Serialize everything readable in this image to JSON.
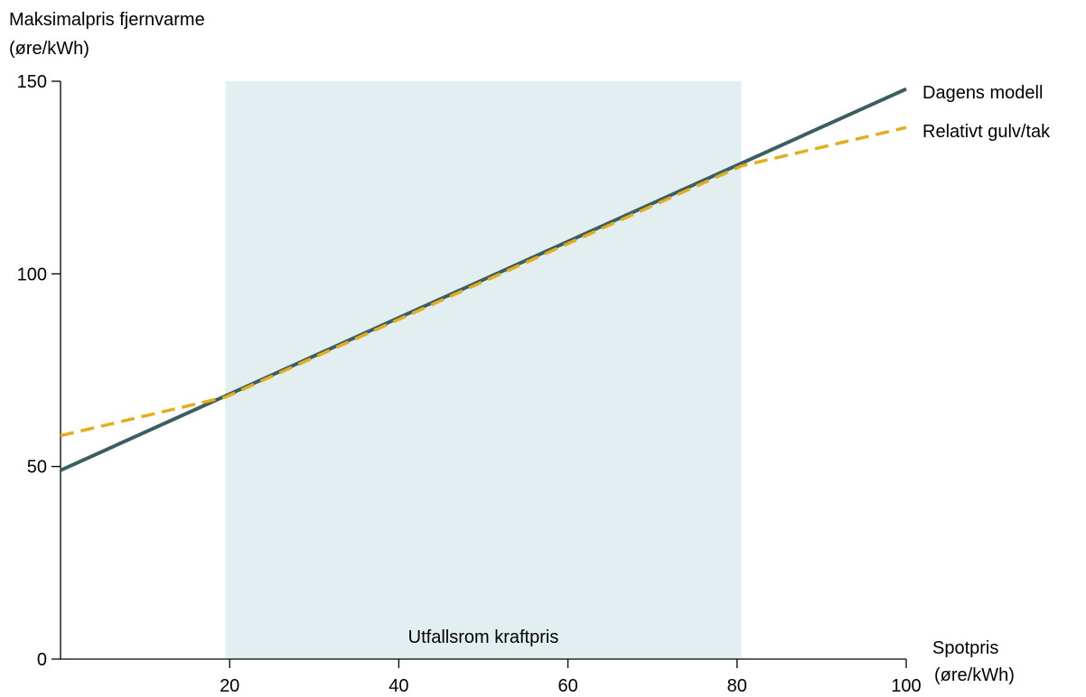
{
  "chart_data": {
    "type": "line",
    "ylabel_line1": "Maksimalpris fjernvarme",
    "ylabel_line2": "(øre/kWh)",
    "xlabel_line1": "Spotpris",
    "xlabel_line2": "(øre/kWh)",
    "xlim": [
      0,
      100
    ],
    "ylim": [
      0,
      150
    ],
    "xticks": [
      20,
      40,
      60,
      80,
      100
    ],
    "xtick_labels": [
      "20",
      "40",
      "60",
      "80",
      "100"
    ],
    "yticks": [
      0,
      50,
      100,
      150
    ],
    "ytick_labels": [
      "0",
      "50",
      "100",
      "150"
    ],
    "grid": false,
    "legend": "inline-right",
    "shaded_region": {
      "x": [
        19.5,
        80.5
      ],
      "label": "Utfallsrom kraftpris",
      "color": "#e2eef0"
    },
    "series": [
      {
        "name": "Dagens modell",
        "style": "solid",
        "color": "#3b5e63",
        "x": [
          0,
          100
        ],
        "y": [
          49,
          148
        ]
      },
      {
        "name": "Relativt gulv/tak",
        "style": "dashed",
        "color": "#e2ae1e",
        "x": [
          0,
          19.5,
          80.5,
          100
        ],
        "y": [
          58,
          68,
          128,
          138
        ]
      }
    ]
  }
}
